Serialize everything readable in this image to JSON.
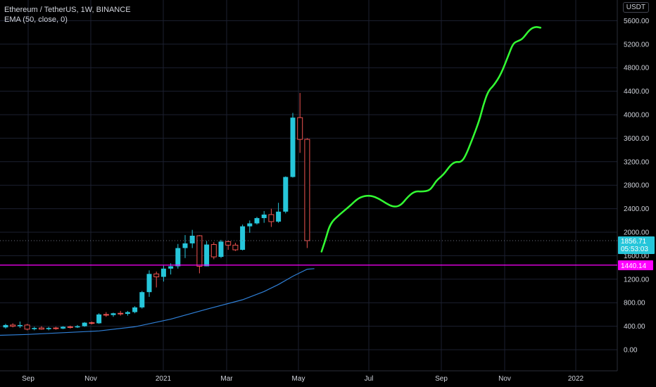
{
  "legend": {
    "symbol": "Ethereum / TetherUS, 1W, BINANCE",
    "indicator": "EMA (50, close, 0)"
  },
  "currency": "USDT",
  "colors": {
    "background": "#000000",
    "grid": "#1c2030",
    "up": "#26c6da",
    "down": "#ef5350",
    "ema": "#2f7fd6",
    "prediction": "#33ff33",
    "support_line": "#ff00ff"
  },
  "price_labels": {
    "current_price": "1856.71",
    "countdown": "05:53:03",
    "support_price": "1440.14"
  },
  "chart_data": {
    "type": "candlestick",
    "y_axis": {
      "min": -100,
      "max": 5900,
      "ticks": [
        "0.00",
        "400.00",
        "800.00",
        "1200.00",
        "1600.00",
        "2000.00",
        "2400.00",
        "2800.00",
        "3200.00",
        "3600.00",
        "4000.00",
        "4400.00",
        "4800.00",
        "5200.00",
        "5600.00"
      ]
    },
    "x_axis": {
      "labels": [
        "Sep",
        "Nov",
        "2021",
        "Mar",
        "May",
        "Jul",
        "Sep",
        "Nov",
        "2022"
      ]
    },
    "candles": [
      [
        0,
        380,
        440,
        360,
        420
      ],
      [
        1,
        420,
        450,
        380,
        400
      ],
      [
        2,
        400,
        480,
        370,
        420
      ],
      [
        3,
        420,
        440,
        330,
        350
      ],
      [
        4,
        350,
        390,
        330,
        370
      ],
      [
        5,
        370,
        400,
        340,
        350
      ],
      [
        6,
        350,
        390,
        330,
        370
      ],
      [
        7,
        370,
        390,
        340,
        360
      ],
      [
        8,
        360,
        400,
        350,
        390
      ],
      [
        9,
        390,
        410,
        360,
        380
      ],
      [
        10,
        380,
        420,
        370,
        400
      ],
      [
        11,
        400,
        470,
        390,
        460
      ],
      [
        12,
        460,
        480,
        430,
        450
      ],
      [
        13,
        450,
        620,
        440,
        600
      ],
      [
        14,
        600,
        640,
        560,
        590
      ],
      [
        15,
        590,
        630,
        560,
        620
      ],
      [
        16,
        620,
        660,
        580,
        610
      ],
      [
        17,
        610,
        660,
        580,
        640
      ],
      [
        18,
        640,
        740,
        620,
        720
      ],
      [
        19,
        720,
        1000,
        700,
        980
      ],
      [
        20,
        980,
        1350,
        900,
        1290
      ],
      [
        21,
        1290,
        1330,
        1060,
        1240
      ],
      [
        22,
        1240,
        1430,
        1160,
        1380
      ],
      [
        23,
        1380,
        1470,
        1280,
        1420
      ],
      [
        24,
        1420,
        1800,
        1380,
        1730
      ],
      [
        25,
        1730,
        1950,
        1560,
        1810
      ],
      [
        26,
        1810,
        2040,
        1730,
        1940
      ],
      [
        27,
        1940,
        1950,
        1300,
        1420
      ],
      [
        28,
        1420,
        1850,
        1420,
        1790
      ],
      [
        29,
        1790,
        1830,
        1540,
        1580
      ],
      [
        30,
        1580,
        1870,
        1560,
        1840
      ],
      [
        31,
        1840,
        1860,
        1700,
        1780
      ],
      [
        32,
        1780,
        1820,
        1680,
        1700
      ],
      [
        33,
        1700,
        2130,
        1690,
        2100
      ],
      [
        34,
        2100,
        2200,
        1990,
        2150
      ],
      [
        35,
        2150,
        2260,
        2130,
        2240
      ],
      [
        36,
        2240,
        2360,
        2160,
        2300
      ],
      [
        37,
        2300,
        2400,
        2090,
        2180
      ],
      [
        38,
        2180,
        2500,
        2160,
        2350
      ],
      [
        39,
        2350,
        2950,
        2320,
        2940
      ],
      [
        40,
        2940,
        4030,
        2930,
        3950
      ],
      [
        41,
        3950,
        4370,
        3350,
        3580
      ],
      [
        42,
        3580,
        3600,
        1730,
        1856.71
      ]
    ],
    "ema_50": [
      [
        -2.5,
        240
      ],
      [
        3,
        260
      ],
      [
        8,
        290
      ],
      [
        13,
        320
      ],
      [
        18,
        390
      ],
      [
        23,
        520
      ],
      [
        28,
        690
      ],
      [
        33,
        850
      ],
      [
        36,
        990
      ],
      [
        38,
        1110
      ],
      [
        40,
        1250
      ],
      [
        42,
        1370
      ],
      [
        43,
        1380
      ]
    ],
    "prediction_path": [
      [
        44,
        1670
      ],
      [
        44.5,
        1850
      ],
      [
        45.2,
        2150
      ],
      [
        46.5,
        2300
      ],
      [
        48,
        2450
      ],
      [
        49,
        2570
      ],
      [
        50,
        2620
      ],
      [
        51,
        2620
      ],
      [
        52,
        2570
      ],
      [
        53,
        2490
      ],
      [
        54,
        2430
      ],
      [
        55,
        2450
      ],
      [
        56,
        2600
      ],
      [
        57,
        2700
      ],
      [
        58,
        2690
      ],
      [
        59,
        2710
      ],
      [
        59.5,
        2780
      ],
      [
        60,
        2880
      ],
      [
        61,
        2980
      ],
      [
        62,
        3150
      ],
      [
        62.7,
        3200
      ],
      [
        63.4,
        3190
      ],
      [
        64,
        3280
      ],
      [
        65,
        3580
      ],
      [
        66,
        3910
      ],
      [
        66.5,
        4150
      ],
      [
        67.2,
        4400
      ],
      [
        68,
        4500
      ],
      [
        69,
        4690
      ],
      [
        70,
        5000
      ],
      [
        70.7,
        5220
      ],
      [
        71.5,
        5260
      ],
      [
        72,
        5290
      ],
      [
        73,
        5450
      ],
      [
        73.8,
        5500
      ],
      [
        74.5,
        5480
      ]
    ],
    "horizontal_lines": [
      {
        "price": 1440.14,
        "style": "solid",
        "name": "support"
      },
      {
        "price": 1856.71,
        "style": "dotted",
        "name": "current"
      }
    ]
  }
}
